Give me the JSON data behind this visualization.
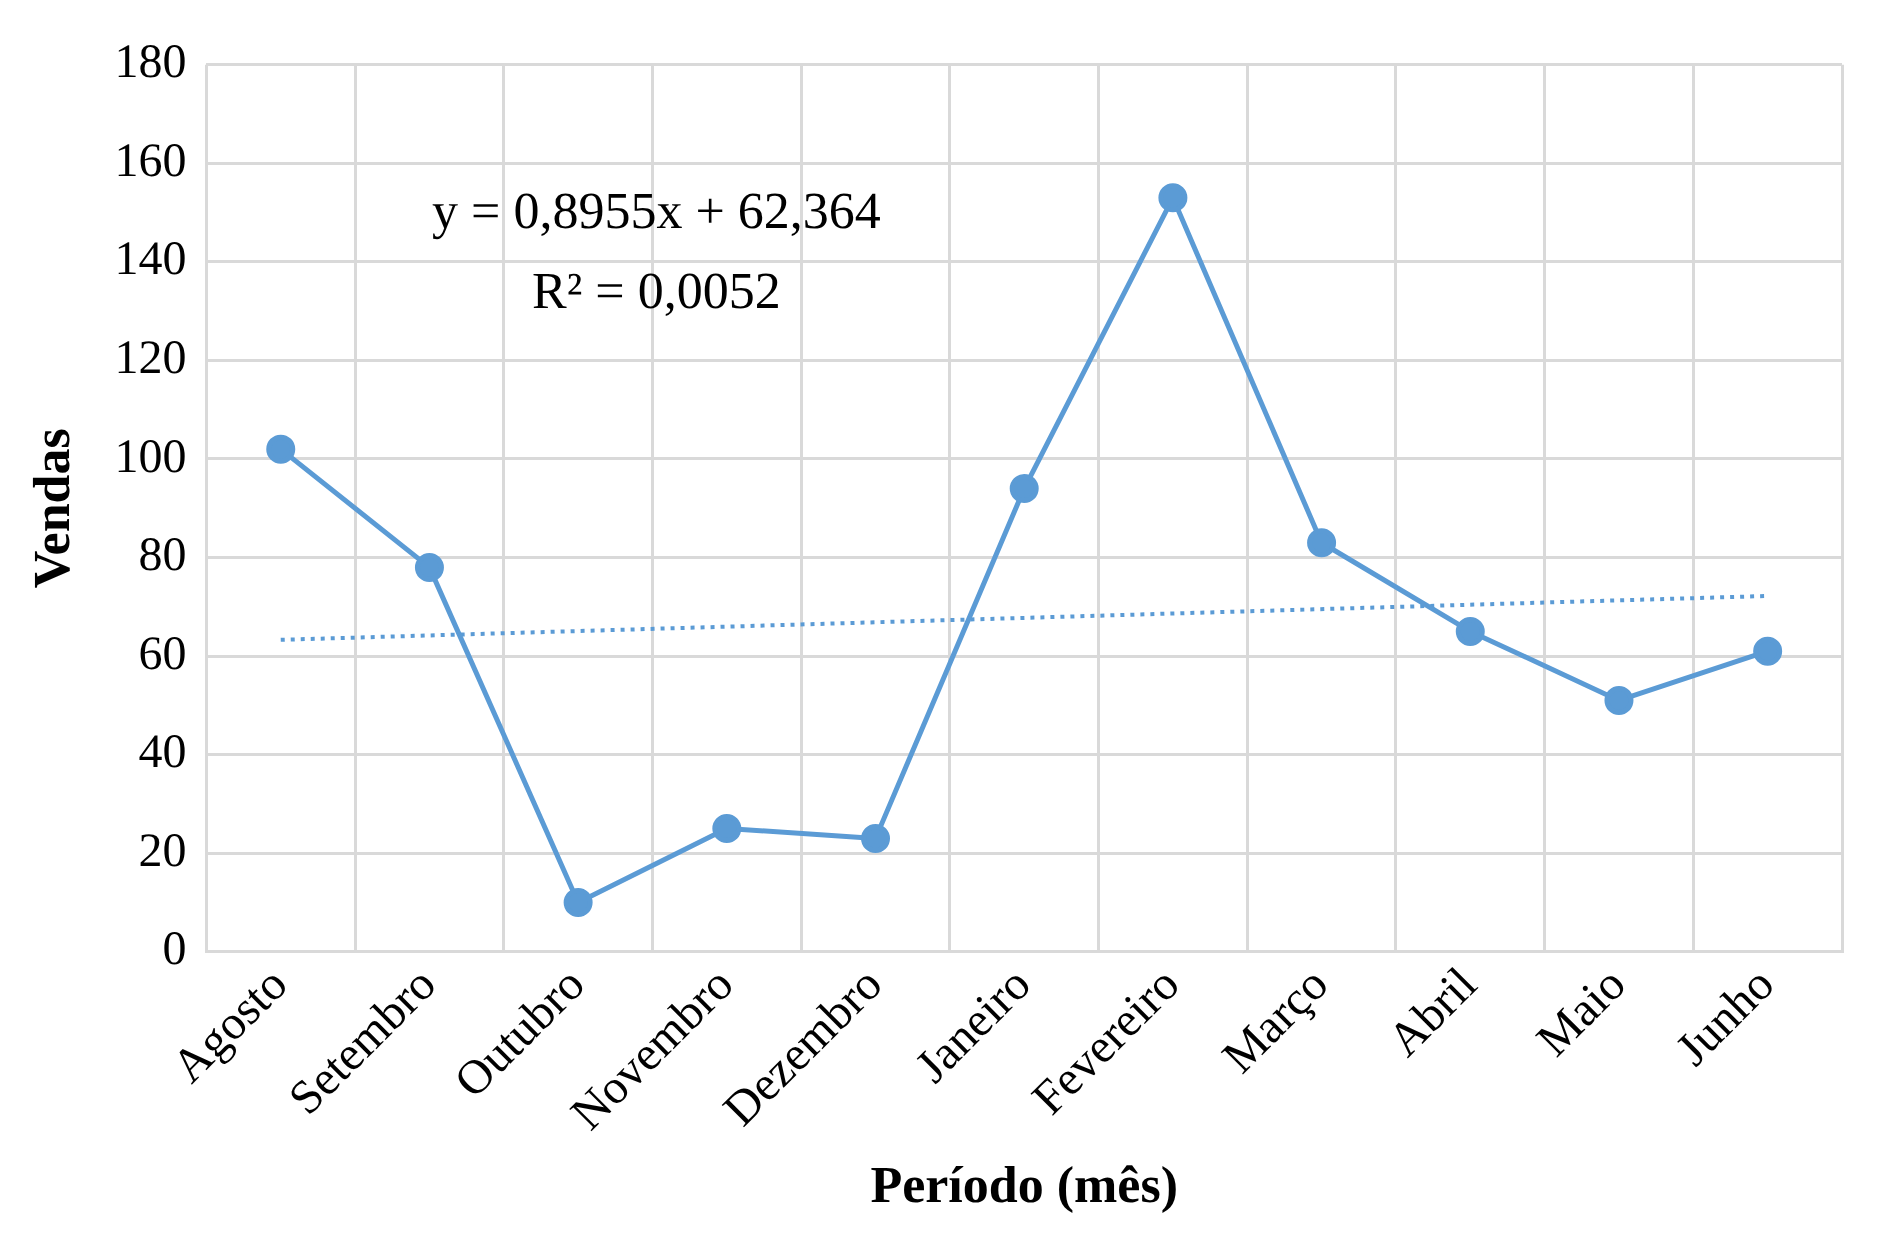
{
  "chart_data": {
    "type": "line",
    "xlabel": "Período (mês)",
    "ylabel": "Vendas",
    "categories": [
      "Agosto",
      "Setembro",
      "Outubro",
      "Novembro",
      "Dezembro",
      "Janeiro",
      "Fevereiro",
      "Março",
      "Abril",
      "Maio",
      "Junho"
    ],
    "series": [
      {
        "color": "#5b9bd5",
        "values": [
          102,
          78,
          10,
          25,
          23,
          94,
          153,
          83,
          65,
          51,
          61
        ],
        "marker": "circle",
        "line_style": "solid"
      },
      {
        "type": "line",
        "color": "#5b9bd5",
        "x": [
          "Agosto",
          "Junho"
        ],
        "values": [
          63.3,
          72.2
        ],
        "marker": "none",
        "line_style": "dotted"
      }
    ],
    "ylim": [
      0,
      180
    ],
    "yticks": [
      0,
      20,
      40,
      60,
      80,
      100,
      120,
      140,
      160,
      180
    ],
    "grid": true,
    "legend": false,
    "annotations": [
      "y = 0,8955x + 62,364",
      "R² = 0,0052"
    ]
  }
}
